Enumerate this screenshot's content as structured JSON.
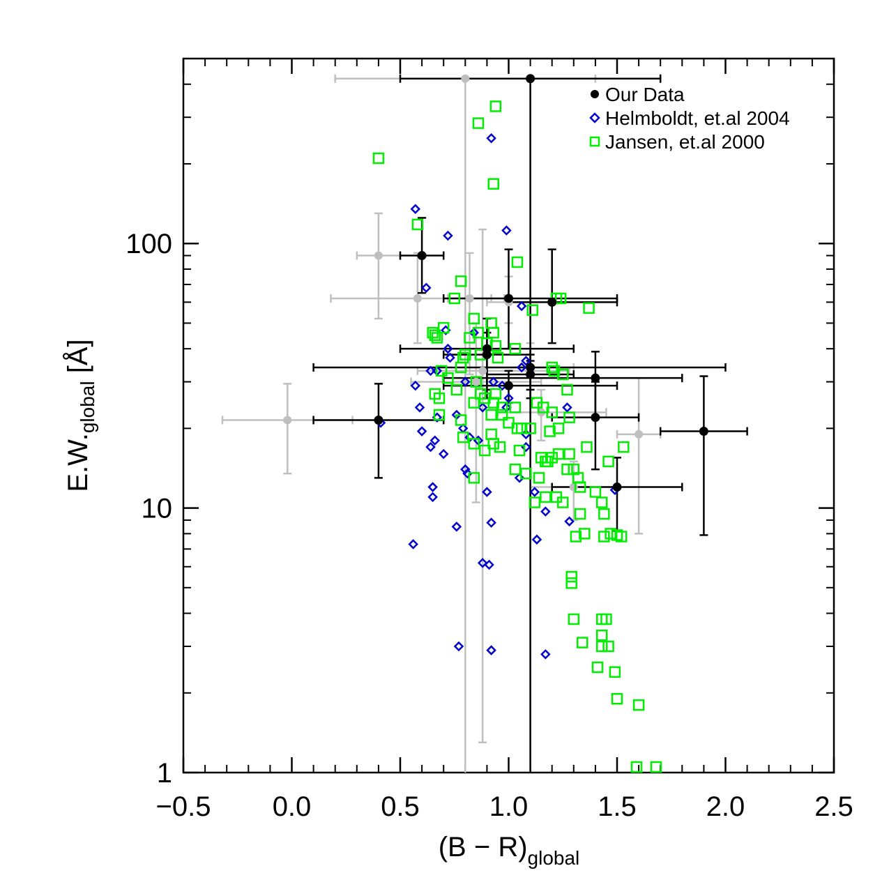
{
  "chart_data": {
    "type": "scatter",
    "xlabel": {
      "main": "(B − R)",
      "sub": "global"
    },
    "ylabel": {
      "main": "E.W.",
      "sub": "global",
      "unit": " [Å]"
    },
    "xlim": [
      -0.5,
      2.5
    ],
    "ylim": [
      1,
      500
    ],
    "yscale": "log",
    "grid": false,
    "legend_position": "top-right",
    "x_ticks": [
      {
        "value": -0.5,
        "label": "−0.5"
      },
      {
        "value": 0.0,
        "label": "0.0"
      },
      {
        "value": 0.5,
        "label": "0.5"
      },
      {
        "value": 1.0,
        "label": "1.0"
      },
      {
        "value": 1.5,
        "label": "1.5"
      },
      {
        "value": 2.0,
        "label": "2.0"
      },
      {
        "value": 2.5,
        "label": "2.5"
      }
    ],
    "y_ticks": [
      {
        "value": 1,
        "label": "1"
      },
      {
        "value": 10,
        "label": "10"
      },
      {
        "value": 100,
        "label": "100"
      }
    ],
    "colors": {
      "our_data": "#000000",
      "comparison_errorbars": "#bfbfbf",
      "helmboldt": "#0000cc",
      "jansen": "#00ee00"
    },
    "series": [
      {
        "name": "Our Data",
        "marker": "filled-circle",
        "color": "#000000",
        "points": [
          {
            "x": 1.1,
            "y": 420,
            "xerr": [
              0.6,
              0.6
            ],
            "yerr": [
              419,
              0
            ]
          },
          {
            "x": 0.6,
            "y": 90,
            "xerr": [
              0.1,
              0.1
            ],
            "yerr": [
              25,
              35
            ]
          },
          {
            "x": 1.0,
            "y": 62,
            "xerr": [
              0.3,
              0.5
            ],
            "yerr": [
              22,
              33
            ]
          },
          {
            "x": 1.2,
            "y": 60,
            "xerr": [
              0.2,
              0.3
            ],
            "yerr": [
              18,
              35
            ]
          },
          {
            "x": 0.9,
            "y": 40,
            "xerr": [
              0.4,
              0.4
            ],
            "yerr": [
              14,
              12
            ]
          },
          {
            "x": 0.9,
            "y": 38,
            "xerr": [
              0.2,
              0.2
            ],
            "yerr": [
              10,
              8
            ]
          },
          {
            "x": 1.1,
            "y": 34,
            "xerr": [
              1.0,
              0.9
            ],
            "yerr": [
              8,
              4
            ]
          },
          {
            "x": 1.1,
            "y": 32,
            "xerr": [
              0.2,
              0.2
            ],
            "yerr": [
              4,
              4
            ]
          },
          {
            "x": 1.0,
            "y": 29,
            "xerr": [
              0.3,
              0.5
            ],
            "yerr": [
              4,
              4
            ]
          },
          {
            "x": 1.4,
            "y": 31,
            "xerr": [
              0.7,
              0.4
            ],
            "yerr": [
              9,
              8
            ]
          },
          {
            "x": 1.4,
            "y": 22,
            "xerr": [
              0.2,
              0.2
            ],
            "yerr": [
              8,
              8
            ]
          },
          {
            "x": 0.4,
            "y": 21.5,
            "xerr": [
              0.3,
              0.3
            ],
            "yerr": [
              8.5,
              8
            ]
          },
          {
            "x": 1.9,
            "y": 19.5,
            "xerr": [
              0.2,
              0.2
            ],
            "yerr": [
              11.6,
              12
            ]
          },
          {
            "x": 1.5,
            "y": 12,
            "xerr": [
              0.3,
              0.3
            ],
            "yerr": [
              3.8,
              3.5
            ]
          }
        ]
      },
      {
        "name": "",
        "marker": "filled-circle",
        "color": "#bfbfbf",
        "points": [
          {
            "x": 0.8,
            "y": 420,
            "xerr": [
              0.6,
              0.6
            ],
            "yerr": [
              419,
              0
            ]
          },
          {
            "x": 0.4,
            "y": 90,
            "xerr": [
              0.1,
              0.1
            ],
            "yerr": [
              38,
              40
            ]
          },
          {
            "x": 0.58,
            "y": 62,
            "xerr": [
              0.4,
              0.4
            ],
            "yerr": [
              20,
              30
            ]
          },
          {
            "x": 0.82,
            "y": 62,
            "xerr": [
              0.1,
              0.1
            ],
            "yerr": [
              30,
              30
            ]
          },
          {
            "x": 1.0,
            "y": 60,
            "xerr": [
              0.1,
              0.1
            ],
            "yerr": [
              10,
              15
            ]
          },
          {
            "x": 0.88,
            "y": 33,
            "xerr": [
              0.3,
              0.4
            ],
            "yerr": [
              31.7,
              80
            ]
          },
          {
            "x": 0.85,
            "y": 30,
            "xerr": [
              0.3,
              0.3
            ],
            "yerr": [
              19.5,
              20
            ]
          },
          {
            "x": 1.1,
            "y": 34,
            "xerr": [
              0.2,
              0.2
            ],
            "yerr": [
              8,
              8
            ]
          },
          {
            "x": 1.15,
            "y": 23,
            "xerr": [
              0.2,
              0.3
            ],
            "yerr": [
              5,
              5
            ]
          },
          {
            "x": -0.02,
            "y": 21.5,
            "xerr": [
              0.3,
              0.3
            ],
            "yerr": [
              8,
              8
            ]
          },
          {
            "x": 1.6,
            "y": 19,
            "xerr": [
              0.1,
              0.1
            ],
            "yerr": [
              11,
              12
            ]
          },
          {
            "x": 1.3,
            "y": 12,
            "xerr": [
              0.2,
              0.2
            ],
            "yerr": [
              3,
              3
            ]
          }
        ]
      },
      {
        "name": "Helmboldt, et.al 2004",
        "marker": "open-diamond",
        "color": "#0000cc",
        "points": [
          [
            0.57,
            135
          ],
          [
            0.92,
            250
          ],
          [
            0.72,
            107
          ],
          [
            0.99,
            112
          ],
          [
            0.62,
            68
          ],
          [
            0.84,
            46
          ],
          [
            0.72,
            40
          ],
          [
            0.71,
            47
          ],
          [
            0.73,
            37
          ],
          [
            0.8,
            30
          ],
          [
            0.64,
            33
          ],
          [
            0.67,
            33
          ],
          [
            0.57,
            29
          ],
          [
            0.59,
            24
          ],
          [
            0.6,
            19.5
          ],
          [
            0.64,
            17
          ],
          [
            0.66,
            18
          ],
          [
            0.67,
            22
          ],
          [
            0.7,
            16
          ],
          [
            0.65,
            12
          ],
          [
            0.65,
            11
          ],
          [
            0.76,
            22.5
          ],
          [
            0.79,
            20
          ],
          [
            0.8,
            14
          ],
          [
            0.81,
            13.5
          ],
          [
            0.82,
            18.5
          ],
          [
            0.86,
            18
          ],
          [
            0.88,
            24
          ],
          [
            0.9,
            11.5
          ],
          [
            0.92,
            8.8
          ],
          [
            0.76,
            8.5
          ],
          [
            0.56,
            7.3
          ],
          [
            0.88,
            6.2
          ],
          [
            0.91,
            6.1
          ],
          [
            0.77,
            3.0
          ],
          [
            0.92,
            2.9
          ],
          [
            1.17,
            2.8
          ],
          [
            1.13,
            7.6
          ],
          [
            1.17,
            9.7
          ],
          [
            1.28,
            8.9
          ],
          [
            1.12,
            11.5
          ],
          [
            1.27,
            24
          ],
          [
            1.08,
            17
          ],
          [
            1.05,
            13
          ],
          [
            1.06,
            34
          ],
          [
            1.08,
            36
          ],
          [
            1.0,
            26
          ],
          [
            0.97,
            29
          ],
          [
            0.99,
            24
          ],
          [
            1.06,
            58
          ],
          [
            1.08,
            19
          ],
          [
            0.41,
            21
          ],
          [
            1.49,
            11.7
          ],
          [
            0.93,
            30
          ]
        ]
      },
      {
        "name": "Jansen, et.al 2000",
        "marker": "open-square",
        "color": "#00ee00",
        "points": [
          [
            0.4,
            210
          ],
          [
            0.94,
            330
          ],
          [
            0.86,
            285
          ],
          [
            0.93,
            168
          ],
          [
            0.58,
            118
          ],
          [
            1.04,
            85
          ],
          [
            0.78,
            72
          ],
          [
            0.75,
            62
          ],
          [
            1.22,
            62
          ],
          [
            1.24,
            62
          ],
          [
            1.11,
            56
          ],
          [
            1.37,
            57
          ],
          [
            0.84,
            52
          ],
          [
            0.92,
            50
          ],
          [
            0.7,
            48
          ],
          [
            0.65,
            46
          ],
          [
            0.66,
            45
          ],
          [
            0.67,
            44
          ],
          [
            0.82,
            44
          ],
          [
            0.86,
            46
          ],
          [
            0.93,
            46
          ],
          [
            0.94,
            41
          ],
          [
            0.9,
            42
          ],
          [
            0.87,
            38
          ],
          [
            1.03,
            40
          ],
          [
            0.95,
            37
          ],
          [
            0.79,
            37
          ],
          [
            0.8,
            38
          ],
          [
            0.69,
            33
          ],
          [
            0.72,
            31
          ],
          [
            0.78,
            34
          ],
          [
            1.2,
            34
          ],
          [
            1.21,
            33
          ],
          [
            1.25,
            32
          ],
          [
            0.85,
            30
          ],
          [
            0.87,
            27
          ],
          [
            0.94,
            27
          ],
          [
            1.27,
            28
          ],
          [
            0.66,
            27
          ],
          [
            0.68,
            26
          ],
          [
            0.76,
            28
          ],
          [
            0.89,
            26
          ],
          [
            0.93,
            25
          ],
          [
            0.97,
            24
          ],
          [
            1.03,
            24
          ],
          [
            1.13,
            25
          ],
          [
            1.16,
            24
          ],
          [
            1.2,
            23
          ],
          [
            1.28,
            22
          ],
          [
            0.68,
            22.5
          ],
          [
            0.84,
            25
          ],
          [
            0.92,
            22.5
          ],
          [
            0.97,
            22.5
          ],
          [
            1.0,
            21
          ],
          [
            1.04,
            20
          ],
          [
            1.06,
            20
          ],
          [
            1.1,
            20
          ],
          [
            1.19,
            19.5
          ],
          [
            1.23,
            20
          ],
          [
            0.78,
            21.5
          ],
          [
            0.79,
            18.5
          ],
          [
            0.84,
            17.5
          ],
          [
            0.92,
            19
          ],
          [
            0.93,
            17.5
          ],
          [
            0.96,
            17
          ],
          [
            0.89,
            16.5
          ],
          [
            1.05,
            16.5
          ],
          [
            1.15,
            15.5
          ],
          [
            1.17,
            15
          ],
          [
            1.18,
            15
          ],
          [
            1.2,
            15.5
          ],
          [
            1.23,
            16
          ],
          [
            1.28,
            16
          ],
          [
            1.3,
            14
          ],
          [
            1.36,
            17
          ],
          [
            1.46,
            15
          ],
          [
            1.53,
            17
          ],
          [
            1.14,
            13
          ],
          [
            1.03,
            14
          ],
          [
            1.08,
            13.5
          ],
          [
            1.27,
            14
          ],
          [
            1.32,
            13
          ],
          [
            1.33,
            12
          ],
          [
            1.22,
            11
          ],
          [
            1.25,
            10.5
          ],
          [
            1.17,
            11
          ],
          [
            1.12,
            10.5
          ],
          [
            1.4,
            11.5
          ],
          [
            1.43,
            10.5
          ],
          [
            1.44,
            9.5
          ],
          [
            1.33,
            9.5
          ],
          [
            1.31,
            7.8
          ],
          [
            1.35,
            8
          ],
          [
            1.44,
            7.8
          ],
          [
            1.47,
            8
          ],
          [
            1.5,
            7.9
          ],
          [
            1.52,
            7.8
          ],
          [
            0.84,
            13
          ],
          [
            1.29,
            5.2
          ],
          [
            1.29,
            5.5
          ],
          [
            1.3,
            3.8
          ],
          [
            1.34,
            3.1
          ],
          [
            1.43,
            3.8
          ],
          [
            1.45,
            3.8
          ],
          [
            1.43,
            3.3
          ],
          [
            1.43,
            3.0
          ],
          [
            1.46,
            3.0
          ],
          [
            1.41,
            2.5
          ],
          [
            1.49,
            2.4
          ],
          [
            1.5,
            1.9
          ],
          [
            1.6,
            1.8
          ],
          [
            1.59,
            1.05
          ],
          [
            1.68,
            1.05
          ]
        ]
      }
    ]
  }
}
